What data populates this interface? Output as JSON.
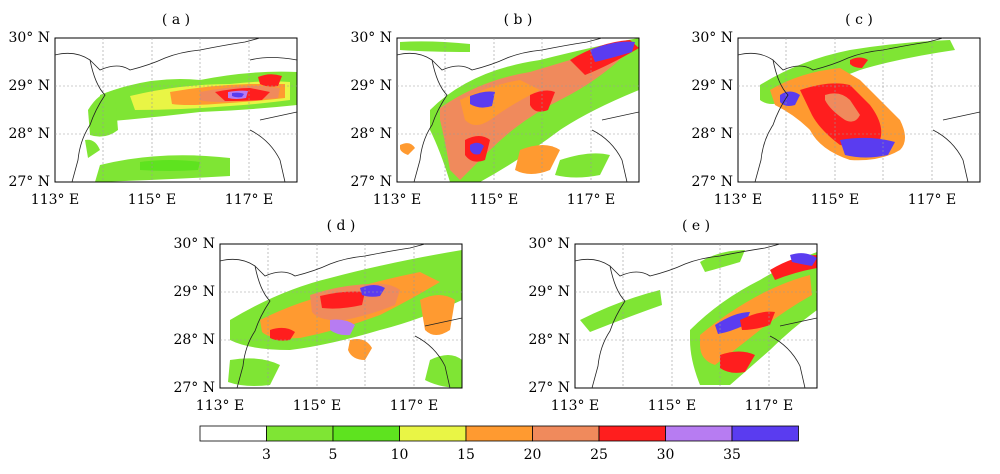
{
  "panels": [
    {
      "label": "( a )"
    },
    {
      "label": "( b )"
    },
    {
      "label": "( c )"
    },
    {
      "label": "( d )"
    },
    {
      "label": "( e )"
    }
  ],
  "axes": {
    "lat_ticks": [
      "30° N",
      "29° N",
      "28° N",
      "27° N"
    ],
    "lon_ticks": [
      "113° E",
      "115° E",
      "117° E"
    ],
    "lon_range": [
      113,
      118
    ],
    "lat_range": [
      27,
      30
    ]
  },
  "colorbar": {
    "tick_labels": [
      "3",
      "5",
      "10",
      "15",
      "20",
      "25",
      "30",
      "35"
    ],
    "colors": [
      "#ffffff",
      "#7fe534",
      "#5ee31f",
      "#e9f545",
      "#ff9a30",
      "#f08a5c",
      "#ff1e1e",
      "#b77cf2",
      "#5a3cf0"
    ]
  }
}
